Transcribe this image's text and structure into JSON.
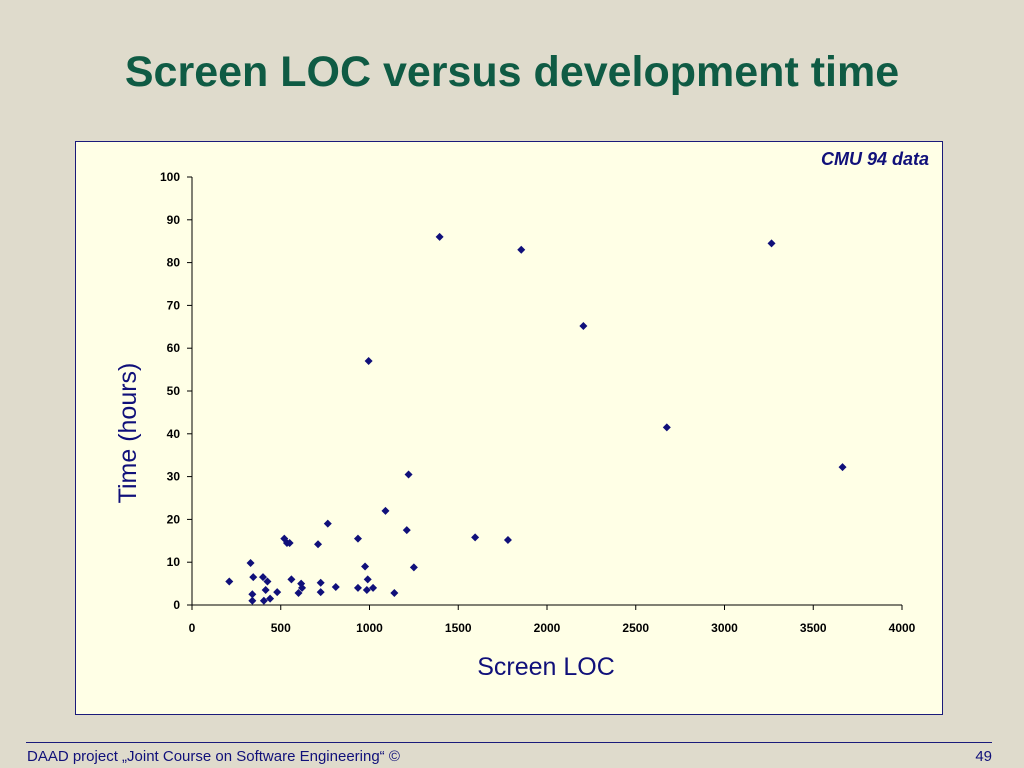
{
  "slide": {
    "title": "Screen LOC versus development time",
    "footer": "DAAD project „Joint Course on Software Engineering“ ©",
    "page_number": "49"
  },
  "colors": {
    "title": "#0f5b44",
    "text": "#10107a",
    "plot_background": "#ffffe6",
    "marker": "#10107a"
  },
  "chart_data": {
    "type": "scatter",
    "annotation": "CMU 94 data",
    "xlabel": "Screen LOC",
    "ylabel": "Time (hours)",
    "xlim": [
      0,
      4000
    ],
    "ylim": [
      0,
      100
    ],
    "xticks": [
      0,
      500,
      1000,
      1500,
      2000,
      2500,
      3000,
      3500,
      4000
    ],
    "yticks": [
      0,
      10,
      20,
      30,
      40,
      50,
      60,
      70,
      80,
      90,
      100
    ],
    "grid": false,
    "legend": "none",
    "marker": "diamond",
    "points": [
      [
        210,
        5.5
      ],
      [
        330,
        9.8
      ],
      [
        340,
        2.5
      ],
      [
        340,
        1.0
      ],
      [
        345,
        6.5
      ],
      [
        400,
        6.5
      ],
      [
        405,
        1.0
      ],
      [
        415,
        3.5
      ],
      [
        425,
        5.5
      ],
      [
        440,
        1.5
      ],
      [
        480,
        3.0
      ],
      [
        520,
        15.5
      ],
      [
        535,
        14.5
      ],
      [
        550,
        14.5
      ],
      [
        560,
        6.0
      ],
      [
        600,
        2.8
      ],
      [
        615,
        5.0
      ],
      [
        620,
        4.0
      ],
      [
        710,
        14.2
      ],
      [
        725,
        5.2
      ],
      [
        725,
        3.0
      ],
      [
        765,
        19.0
      ],
      [
        810,
        4.2
      ],
      [
        935,
        15.5
      ],
      [
        935,
        4.0
      ],
      [
        975,
        9.0
      ],
      [
        985,
        3.5
      ],
      [
        990,
        6.0
      ],
      [
        995,
        57.0
      ],
      [
        1020,
        4.0
      ],
      [
        1090,
        22.0
      ],
      [
        1140,
        2.8
      ],
      [
        1210,
        17.5
      ],
      [
        1220,
        30.5
      ],
      [
        1250,
        8.8
      ],
      [
        1395,
        86.0
      ],
      [
        1595,
        15.8
      ],
      [
        1780,
        15.2
      ],
      [
        1855,
        83.0
      ],
      [
        2205,
        65.2
      ],
      [
        2675,
        41.5
      ],
      [
        3265,
        84.5
      ],
      [
        3665,
        32.2
      ]
    ]
  }
}
